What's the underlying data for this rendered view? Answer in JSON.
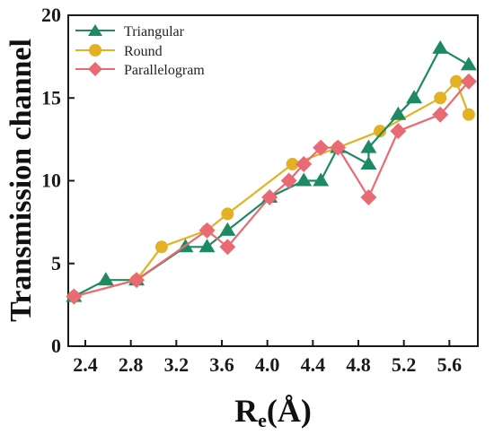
{
  "chart_data": {
    "type": "line",
    "ylabel": "Transmission channel",
    "xlabel_main": "R",
    "xlabel_sub": "e",
    "xlabel_unit": "(Å)",
    "xlim": [
      2.25,
      5.85
    ],
    "ylim": [
      0,
      20
    ],
    "xticks": [
      "2.4",
      "2.8",
      "3.2",
      "3.6",
      "4.0",
      "4.4",
      "4.8",
      "5.2",
      "5.6"
    ],
    "yticks": [
      "0",
      "5",
      "10",
      "15",
      "20"
    ],
    "grid": false,
    "legend_position": "top-left",
    "series": [
      {
        "name": "Triangular",
        "marker": "triangle",
        "color": "#1e8a62",
        "x": [
          2.3,
          2.58,
          2.85,
          3.28,
          3.47,
          3.65,
          4.02,
          4.32,
          4.47,
          4.62,
          4.89,
          4.89,
          5.15,
          5.29,
          5.52,
          5.77
        ],
        "y": [
          3,
          4,
          4,
          6,
          6,
          7,
          9,
          10,
          10,
          12,
          11,
          12,
          14,
          15,
          18,
          17
        ]
      },
      {
        "name": "Round",
        "marker": "circle",
        "color": "#e3b224",
        "x": [
          2.3,
          2.85,
          3.07,
          3.47,
          3.65,
          4.22,
          4.62,
          4.99,
          5.52,
          5.66,
          5.77
        ],
        "y": [
          3,
          4,
          6,
          7,
          8,
          11,
          12,
          13,
          15,
          16,
          14
        ]
      },
      {
        "name": "Parallelogram",
        "marker": "diamond",
        "color": "#e86b73",
        "x": [
          2.3,
          2.85,
          3.47,
          3.65,
          4.02,
          4.19,
          4.32,
          4.47,
          4.62,
          4.89,
          5.15,
          5.52,
          5.77
        ],
        "y": [
          3,
          4,
          7,
          6,
          9,
          10,
          11,
          12,
          12,
          9,
          13,
          14,
          16
        ]
      }
    ]
  }
}
